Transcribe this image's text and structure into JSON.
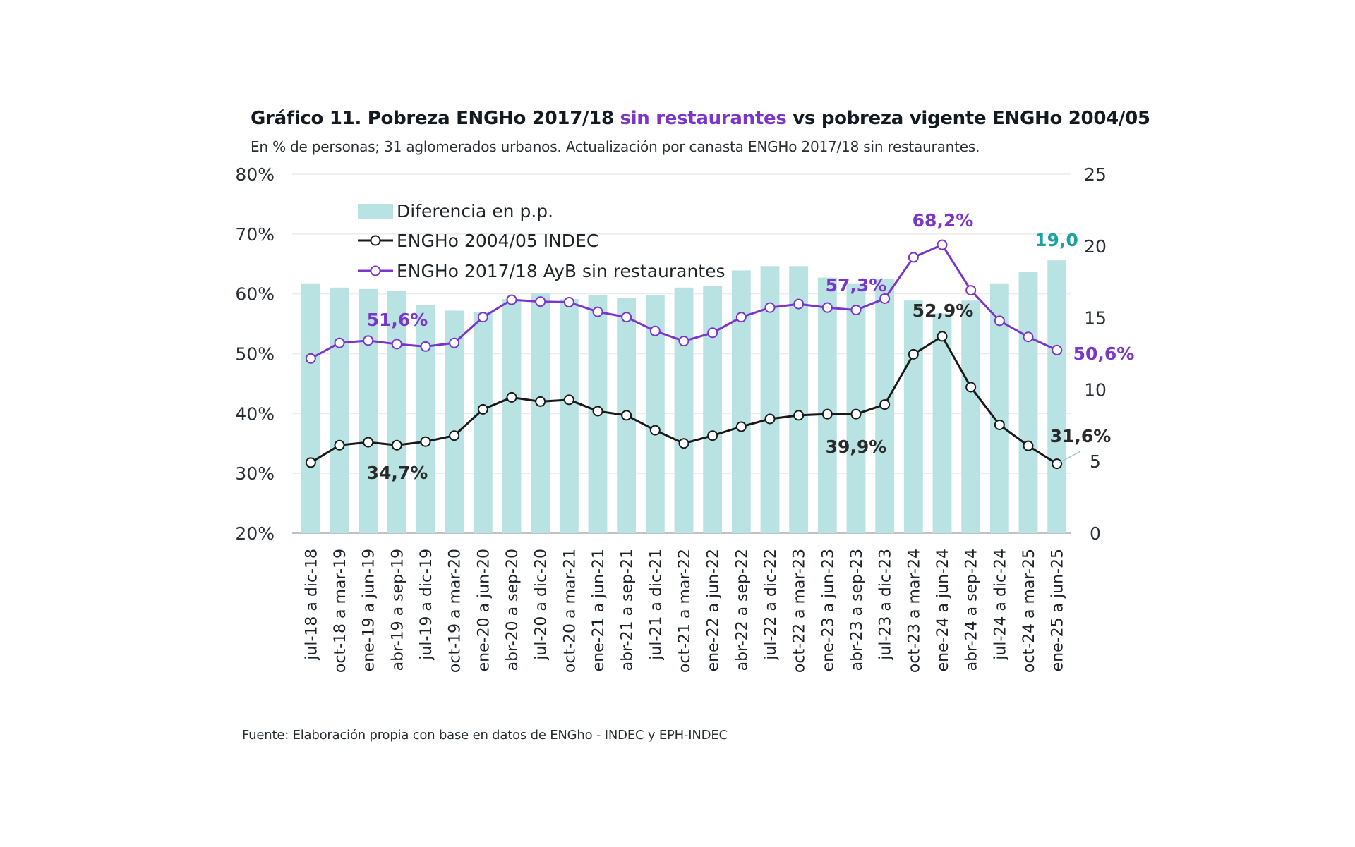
{
  "title": {
    "part1": "Gráfico 11. Pobreza  ENGHo 2017/18 ",
    "highlight": "sin restaurantes",
    "part2": " vs pobreza vigente ENGHo 2004/05"
  },
  "subtitle": "En % de personas; 31 aglomerados urbanos. Actualización por canasta ENGHo 2017/18 sin restaurantes.",
  "source": "Fuente: Elaboración propia con base en datos de ENGho - INDEC y EPH-INDEC",
  "chart_data": {
    "type": "bar+line",
    "categories": [
      "jul-18 a dic-18",
      "oct-18 a mar-19",
      "ene-19 a jun-19",
      "abr-19 a sep-19",
      "jul-19 a dic-19",
      "oct-19 a mar-20",
      "ene-20 a jun-20",
      "abr-20 a sep-20",
      "jul-20 a dic-20",
      "oct-20 a mar-21",
      "ene-21 a jun-21",
      "abr-21 a sep-21",
      "jul-21 a dic-21",
      "oct-21 a mar-22",
      "ene-22 a jun-22",
      "abr-22 a sep-22",
      "jul-22 a dic-22",
      "oct-22 a mar-23",
      "ene-23 a jun-23",
      "abr-23 a sep-23",
      "jul-23 a dic-23",
      "oct-23 a mar-24",
      "ene-24 a jun-24",
      "abr-24 a sep-24",
      "jul-24 a dic-24",
      "oct-24 a mar-25",
      "ene-25 a jun-25"
    ],
    "series": [
      {
        "name": "Diferencia en p.p.",
        "type": "bar",
        "axis": "right",
        "color": "#b9e3e2",
        "values": [
          17.4,
          17.1,
          17.0,
          16.9,
          15.9,
          15.5,
          15.4,
          16.3,
          16.7,
          16.3,
          16.6,
          16.4,
          16.6,
          17.1,
          17.2,
          18.3,
          18.6,
          18.6,
          17.8,
          17.4,
          17.7,
          16.2,
          15.3,
          16.2,
          17.4,
          18.2,
          19.0
        ]
      },
      {
        "name": "ENGHo 2004/05 INDEC",
        "type": "line",
        "axis": "left",
        "color": "#1a1a1a",
        "values": [
          31.8,
          34.7,
          35.2,
          34.7,
          35.3,
          36.3,
          40.7,
          42.7,
          42.0,
          42.3,
          40.4,
          39.7,
          37.2,
          35.0,
          36.3,
          37.8,
          39.1,
          39.7,
          39.9,
          39.9,
          41.5,
          49.9,
          52.9,
          44.4,
          38.1,
          34.6,
          31.6
        ]
      },
      {
        "name": "ENGHo 2017/18 AyB sin restaurantes",
        "type": "line",
        "axis": "left",
        "color": "#7b35c8",
        "values": [
          49.2,
          51.8,
          52.2,
          51.6,
          51.2,
          51.8,
          56.1,
          59.0,
          58.7,
          58.6,
          57.0,
          56.1,
          53.8,
          52.1,
          53.5,
          56.1,
          57.7,
          58.3,
          57.7,
          57.3,
          59.2,
          66.1,
          68.2,
          60.6,
          55.5,
          52.8,
          50.6
        ]
      }
    ],
    "left_axis": {
      "range": [
        20,
        80
      ],
      "ticks": [
        "20%",
        "30%",
        "40%",
        "50%",
        "60%",
        "70%",
        "80%"
      ]
    },
    "right_axis": {
      "range": [
        0,
        25
      ],
      "ticks": [
        "0",
        "5",
        "10",
        "15",
        "20",
        "25"
      ]
    },
    "grid": true,
    "legend": "top-left",
    "data_labels": {
      "purple_low": "51,6%",
      "black_low": "34,7%",
      "purple_mid": "57,3%",
      "purple_peak": "68,2%",
      "black_peak": "52,9%",
      "black_mid": "39,9%",
      "black_last": "31,6%",
      "purple_last": "50,6%",
      "bar_last": "19,0"
    },
    "label_colors": {
      "purple": "#7b35c8",
      "black": "#2a2a2a",
      "teal": "#1aa3a0"
    }
  }
}
